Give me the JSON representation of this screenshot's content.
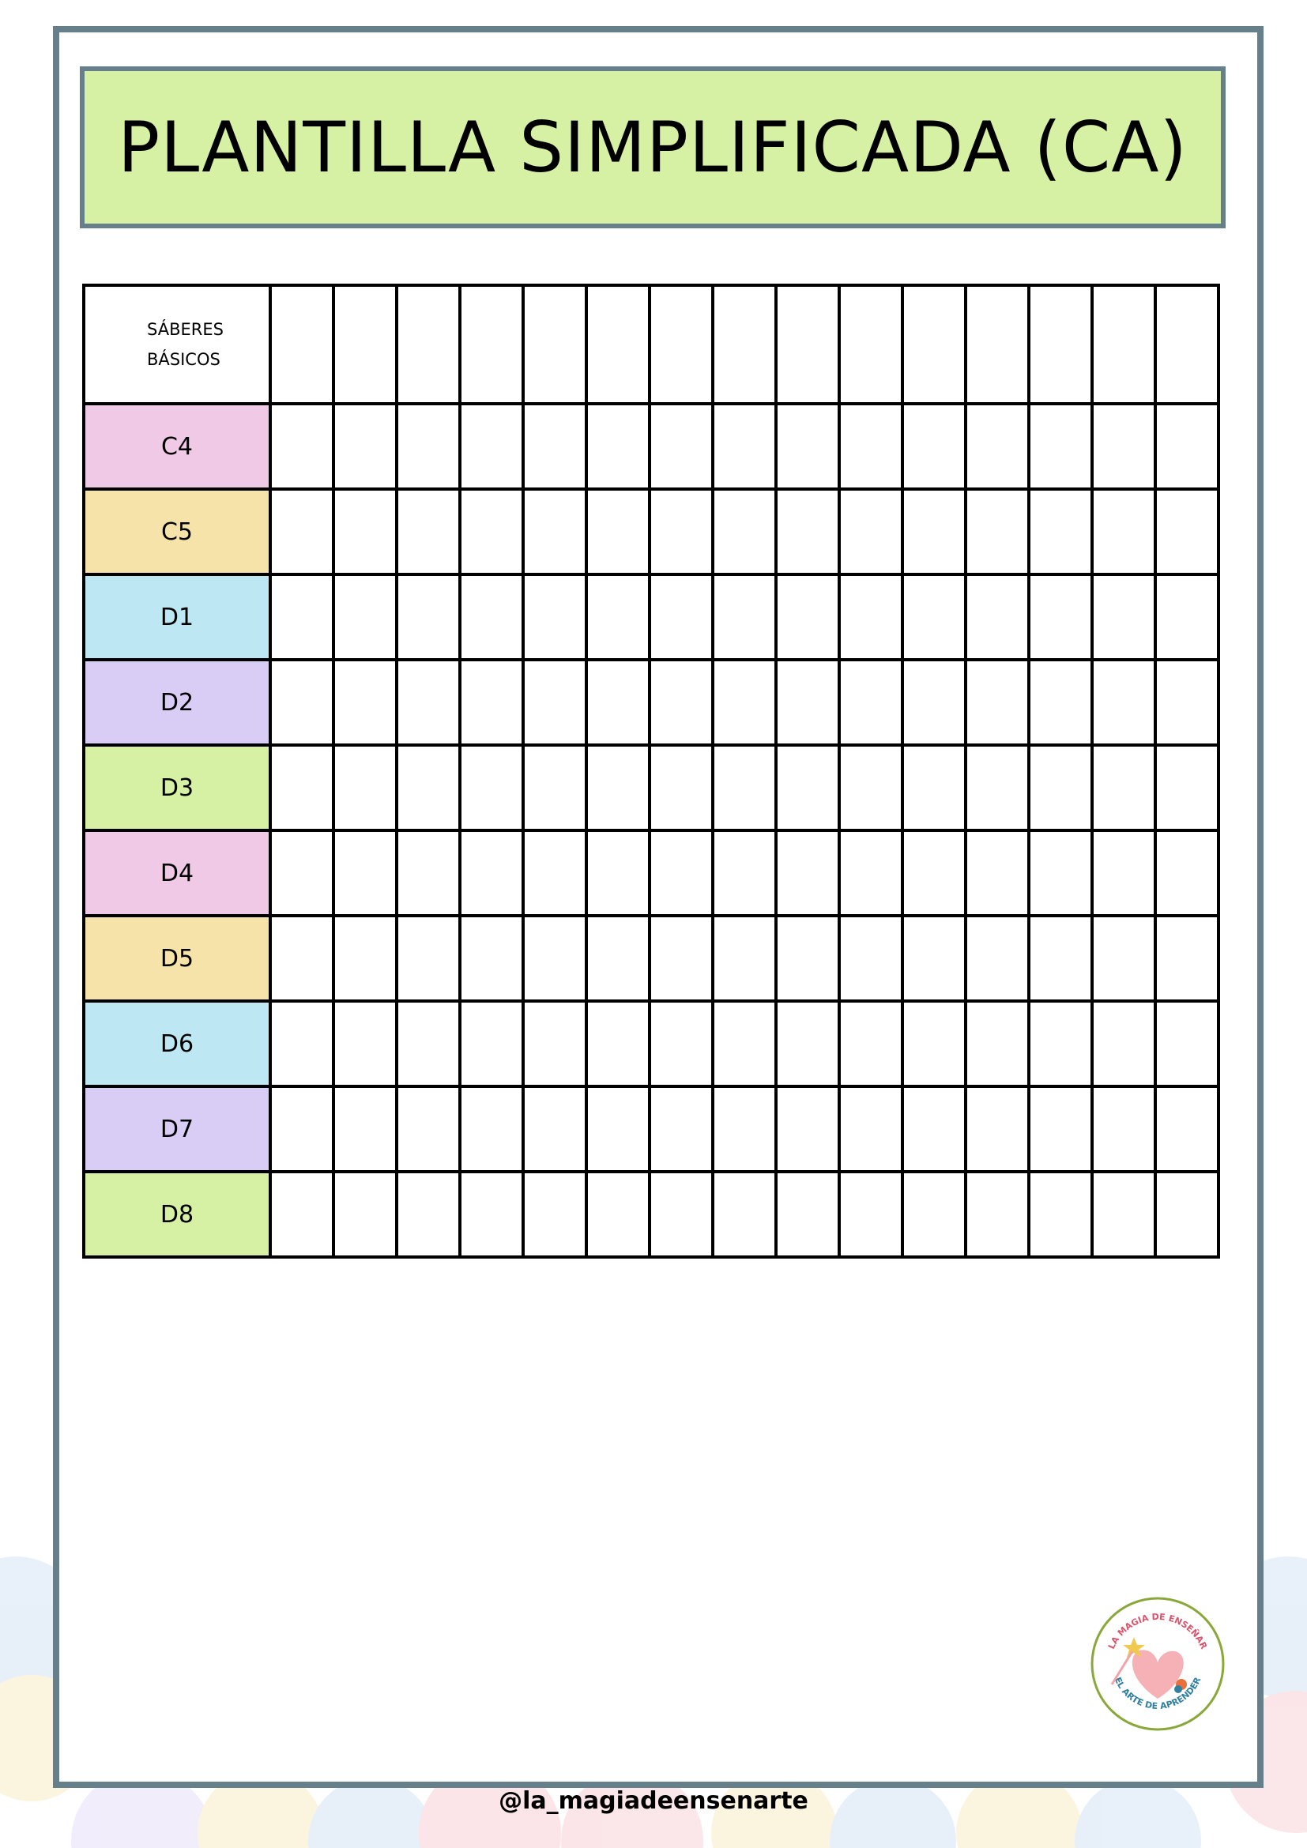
{
  "title": "PLANTILLA SIMPLIFICADA (CA)",
  "table": {
    "header_line1": "SÁBERES",
    "header_line2": "BÁSICOS",
    "column_count": 15,
    "rows": [
      {
        "label": "C4",
        "color": "#f0c9e6"
      },
      {
        "label": "C5",
        "color": "#f6e3a9"
      },
      {
        "label": "D1",
        "color": "#bde8f3"
      },
      {
        "label": "D2",
        "color": "#d9ccf5"
      },
      {
        "label": "D3",
        "color": "#d6f1a4"
      },
      {
        "label": "D4",
        "color": "#f0c9e6"
      },
      {
        "label": "D5",
        "color": "#f6e3a9"
      },
      {
        "label": "D6",
        "color": "#bde8f3"
      },
      {
        "label": "D7",
        "color": "#d9ccf5"
      },
      {
        "label": "D8",
        "color": "#d6f1a4"
      }
    ]
  },
  "logo": {
    "top_text": "LA MAGIA DE ENSEÑAR",
    "bottom_text": "EL ARTE DE APRENDER"
  },
  "footer_handle": "@la_magiadeensenarte",
  "colors": {
    "frame": "#65808a",
    "title_bg": "#d6f1a4",
    "logo_ring": "#8aa83a"
  }
}
